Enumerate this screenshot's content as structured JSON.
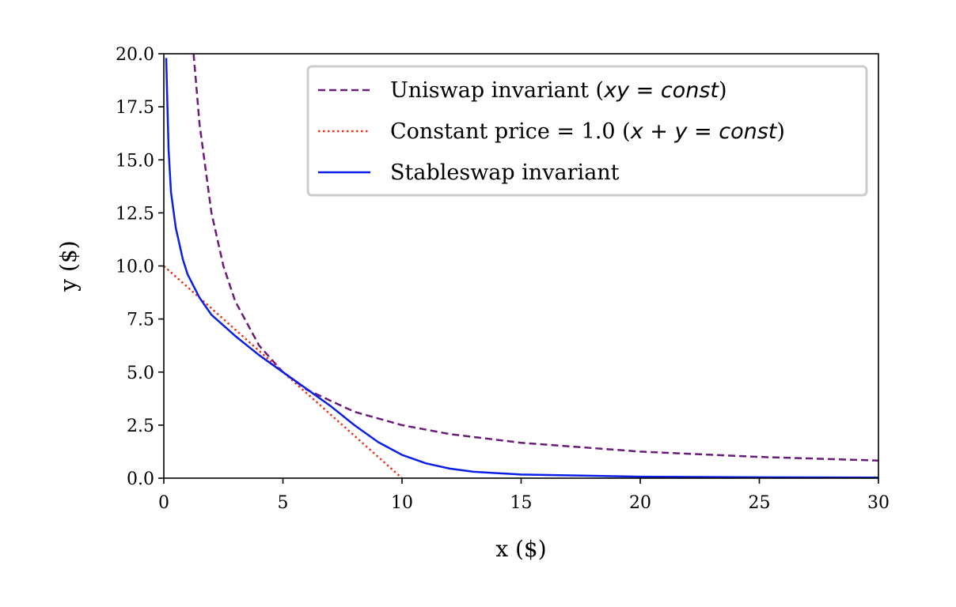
{
  "chart_data": {
    "type": "line",
    "title": "",
    "xlabel": "x ($)",
    "ylabel": "y ($)",
    "xlim": [
      0,
      30
    ],
    "ylim": [
      0,
      20
    ],
    "x_ticks": [
      0,
      5,
      10,
      15,
      20,
      25,
      30
    ],
    "x_tick_labels": [
      "0",
      "5",
      "10",
      "15",
      "20",
      "25",
      "30"
    ],
    "y_ticks": [
      0,
      2.5,
      5,
      7.5,
      10,
      12.5,
      15,
      17.5,
      20
    ],
    "y_tick_labels": [
      "0.0",
      "2.5",
      "5.0",
      "7.5",
      "10.0",
      "12.5",
      "15.0",
      "17.5",
      "20.0"
    ],
    "grid": false,
    "legend_position": "top-right",
    "legend": [
      {
        "name": "Uniswap invariant (xy = const)",
        "plain": "Uniswap invariant (",
        "math": "xy = const",
        "close": ")"
      },
      {
        "name": "Constant price = 1.0 (x + y = const)",
        "plain": "Constant price = 1.0 (",
        "math": "x + y = const",
        "close": ")"
      },
      {
        "name": "Stableswap invariant",
        "plain": "Stableswap invariant",
        "math": "",
        "close": ""
      }
    ],
    "series": [
      {
        "name": "Uniswap invariant (xy = const)",
        "style": "dashed",
        "color": "#6a1b7a",
        "points": [
          [
            1.25,
            20.0
          ],
          [
            1.5,
            16.67
          ],
          [
            2.0,
            12.5
          ],
          [
            2.5,
            10.0
          ],
          [
            3.0,
            8.33
          ],
          [
            4.0,
            6.25
          ],
          [
            5.0,
            5.0
          ],
          [
            6.0,
            4.17
          ],
          [
            8.0,
            3.13
          ],
          [
            10.0,
            2.5
          ],
          [
            12.0,
            2.08
          ],
          [
            15.0,
            1.67
          ],
          [
            20.0,
            1.25
          ],
          [
            25.0,
            1.0
          ],
          [
            30.0,
            0.83
          ]
        ]
      },
      {
        "name": "Constant price = 1.0 (x + y = const)",
        "style": "dotted",
        "color": "#e8341c",
        "points": [
          [
            0.0,
            10.0
          ],
          [
            10.0,
            0.0
          ]
        ]
      },
      {
        "name": "Stableswap invariant",
        "style": "solid",
        "color": "#0a1fe6",
        "points": [
          [
            0.1,
            19.8
          ],
          [
            0.2,
            15.5
          ],
          [
            0.3,
            13.5
          ],
          [
            0.5,
            11.8
          ],
          [
            0.8,
            10.3
          ],
          [
            1.0,
            9.6
          ],
          [
            1.5,
            8.5
          ],
          [
            2.0,
            7.7
          ],
          [
            3.0,
            6.7
          ],
          [
            4.0,
            5.8
          ],
          [
            5.0,
            5.0
          ],
          [
            6.0,
            4.2
          ],
          [
            7.0,
            3.4
          ],
          [
            8.0,
            2.5
          ],
          [
            9.0,
            1.7
          ],
          [
            10.0,
            1.1
          ],
          [
            11.0,
            0.7
          ],
          [
            12.0,
            0.45
          ],
          [
            13.0,
            0.3
          ],
          [
            15.0,
            0.17
          ],
          [
            20.0,
            0.07
          ],
          [
            25.0,
            0.04
          ],
          [
            30.0,
            0.03
          ]
        ]
      }
    ]
  }
}
